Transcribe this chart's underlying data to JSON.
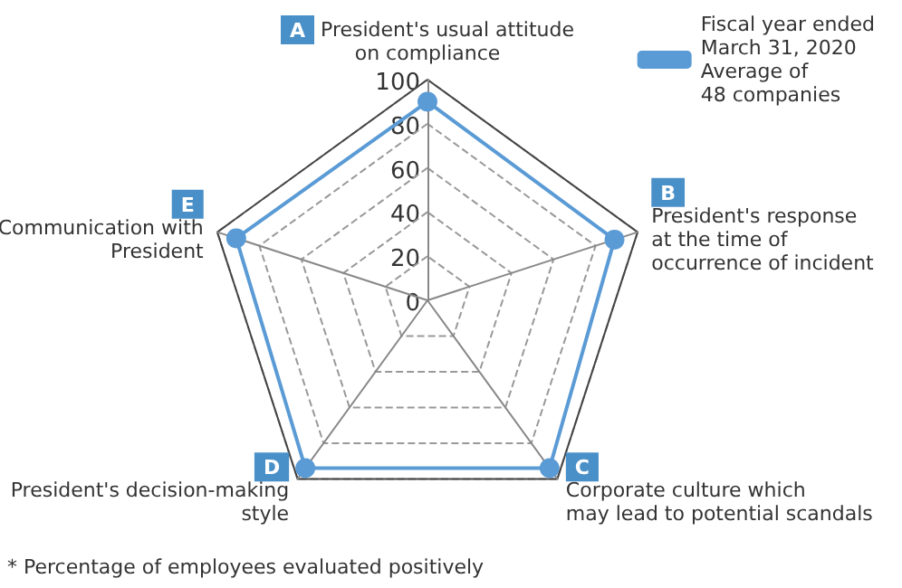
{
  "chart_data": {
    "type": "radar",
    "categories": [
      "A\nPresident's usual attitude\non compliance",
      "B\nPresident's response\nat the time of\noccurrence of incident",
      "C\nCorporate culture which\nmay lead to potential scandals",
      "D\nPresident's decision-making\nstyle",
      "E\nCommunication with\nPresident"
    ],
    "series": [
      {
        "name": "Fiscal year ended\nMarch 31, 2020\nAverage of\n48 companies",
        "color": "#5b9bd5",
        "values": [
          90,
          89,
          94,
          94,
          91
        ]
      }
    ],
    "ylim": [
      0,
      100
    ],
    "yticks": [
      0,
      20,
      40,
      60,
      80,
      100
    ],
    "grid": true,
    "legend": "top right",
    "marker": "circle",
    "line_style": "solid",
    "annotations": [
      "* Percentage of employees evaluated positively"
    ]
  }
}
